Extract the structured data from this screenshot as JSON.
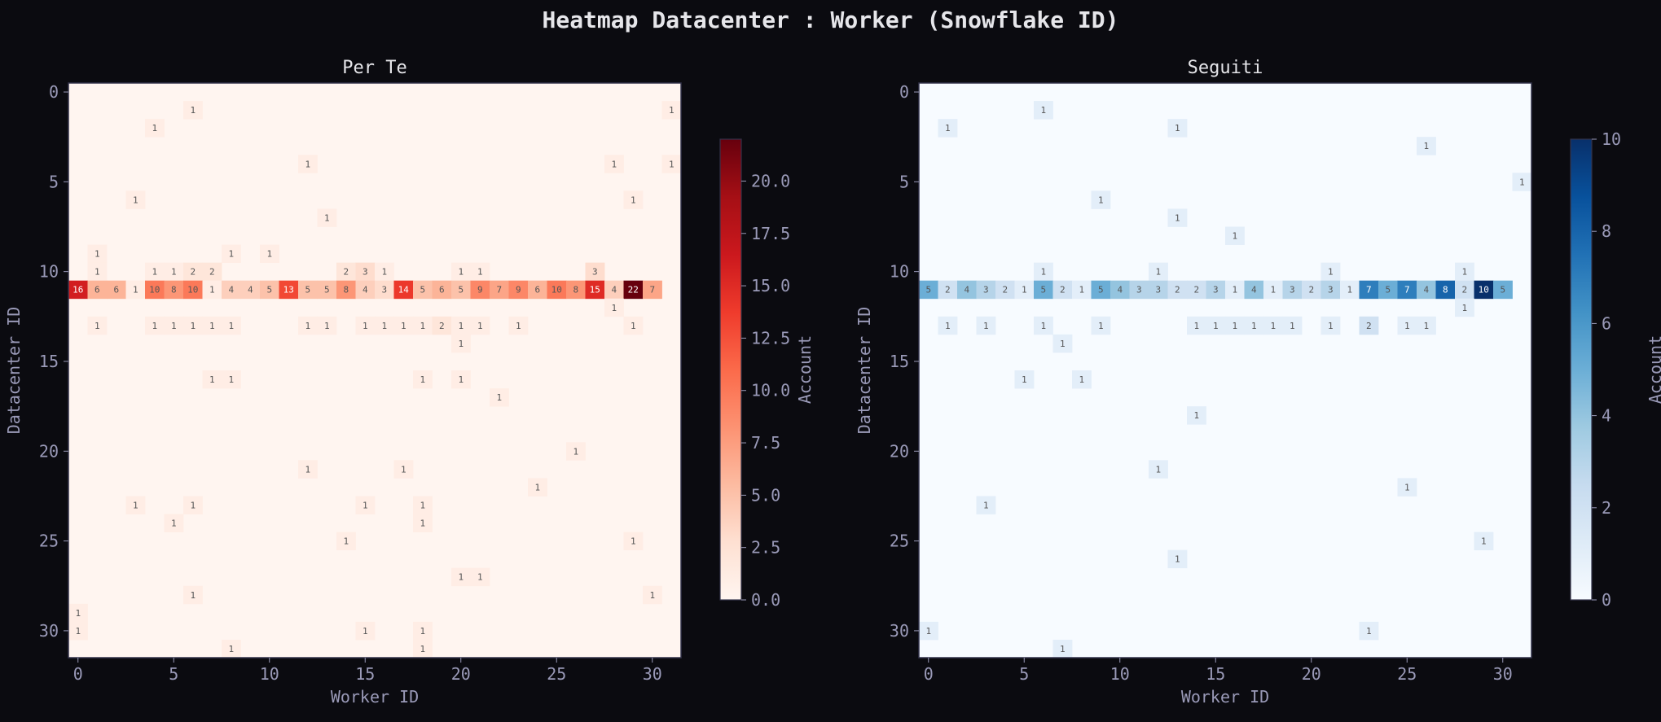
{
  "suptitle": "Heatmap Datacenter : Worker (Snowflake ID)",
  "chart_data": [
    {
      "type": "heatmap",
      "title": "Per Te",
      "xlabel": "Worker ID",
      "ylabel": "Datacenter ID",
      "colorbar_label": "Account",
      "colormap": "Reds",
      "colorbar_ticks": [
        "0.0",
        "2.5",
        "5.0",
        "7.5",
        "10.0",
        "12.5",
        "15.0",
        "17.5",
        "20.0"
      ],
      "x_ticks": [
        "0",
        "5",
        "10",
        "15",
        "20",
        "25",
        "30"
      ],
      "y_ticks": [
        "0",
        "5",
        "10",
        "15",
        "20",
        "25",
        "30"
      ],
      "xlim": [
        0,
        31
      ],
      "ylim": [
        31,
        0
      ],
      "vmin": 0,
      "vmax": 22,
      "cells": [
        [
          6,
          1,
          1
        ],
        [
          31,
          1,
          1
        ],
        [
          4,
          2,
          1
        ],
        [
          12,
          4,
          1
        ],
        [
          28,
          4,
          1
        ],
        [
          31,
          4,
          1
        ],
        [
          3,
          6,
          1
        ],
        [
          29,
          6,
          1
        ],
        [
          13,
          7,
          1
        ],
        [
          1,
          9,
          1
        ],
        [
          8,
          9,
          1
        ],
        [
          10,
          9,
          1
        ],
        [
          1,
          10,
          1
        ],
        [
          4,
          10,
          1
        ],
        [
          5,
          10,
          1
        ],
        [
          6,
          10,
          2
        ],
        [
          7,
          10,
          2
        ],
        [
          14,
          10,
          2
        ],
        [
          15,
          10,
          3
        ],
        [
          16,
          10,
          1
        ],
        [
          20,
          10,
          1
        ],
        [
          21,
          10,
          1
        ],
        [
          27,
          10,
          3
        ],
        [
          0,
          11,
          16
        ],
        [
          1,
          11,
          6
        ],
        [
          2,
          11,
          6
        ],
        [
          3,
          11,
          1
        ],
        [
          4,
          11,
          10
        ],
        [
          5,
          11,
          8
        ],
        [
          6,
          11,
          10
        ],
        [
          7,
          11,
          1
        ],
        [
          8,
          11,
          4
        ],
        [
          9,
          11,
          4
        ],
        [
          10,
          11,
          5
        ],
        [
          11,
          11,
          13
        ],
        [
          12,
          11,
          5
        ],
        [
          13,
          11,
          5
        ],
        [
          14,
          11,
          8
        ],
        [
          15,
          11,
          4
        ],
        [
          16,
          11,
          3
        ],
        [
          17,
          11,
          14
        ],
        [
          18,
          11,
          5
        ],
        [
          19,
          11,
          6
        ],
        [
          20,
          11,
          5
        ],
        [
          21,
          11,
          9
        ],
        [
          22,
          11,
          7
        ],
        [
          23,
          11,
          9
        ],
        [
          24,
          11,
          6
        ],
        [
          25,
          11,
          10
        ],
        [
          26,
          11,
          8
        ],
        [
          27,
          11,
          15
        ],
        [
          28,
          11,
          4
        ],
        [
          29,
          11,
          22
        ],
        [
          30,
          11,
          7
        ],
        [
          28,
          12,
          1
        ],
        [
          1,
          13,
          1
        ],
        [
          4,
          13,
          1
        ],
        [
          5,
          13,
          1
        ],
        [
          6,
          13,
          1
        ],
        [
          7,
          13,
          1
        ],
        [
          8,
          13,
          1
        ],
        [
          12,
          13,
          1
        ],
        [
          13,
          13,
          1
        ],
        [
          15,
          13,
          1
        ],
        [
          16,
          13,
          1
        ],
        [
          17,
          13,
          1
        ],
        [
          18,
          13,
          1
        ],
        [
          19,
          13,
          2
        ],
        [
          20,
          13,
          1
        ],
        [
          21,
          13,
          1
        ],
        [
          23,
          13,
          1
        ],
        [
          29,
          13,
          1
        ],
        [
          20,
          14,
          1
        ],
        [
          7,
          16,
          1
        ],
        [
          8,
          16,
          1
        ],
        [
          18,
          16,
          1
        ],
        [
          20,
          16,
          1
        ],
        [
          22,
          17,
          1
        ],
        [
          26,
          20,
          1
        ],
        [
          12,
          21,
          1
        ],
        [
          17,
          21,
          1
        ],
        [
          24,
          22,
          1
        ],
        [
          3,
          23,
          1
        ],
        [
          6,
          23,
          1
        ],
        [
          15,
          23,
          1
        ],
        [
          18,
          23,
          1
        ],
        [
          5,
          24,
          1
        ],
        [
          18,
          24,
          1
        ],
        [
          14,
          25,
          1
        ],
        [
          29,
          25,
          1
        ],
        [
          20,
          27,
          1
        ],
        [
          21,
          27,
          1
        ],
        [
          6,
          28,
          1
        ],
        [
          30,
          28,
          1
        ],
        [
          0,
          29,
          1
        ],
        [
          0,
          30,
          1
        ],
        [
          15,
          30,
          1
        ],
        [
          18,
          30,
          1
        ],
        [
          8,
          31,
          1
        ],
        [
          18,
          31,
          1
        ]
      ]
    },
    {
      "type": "heatmap",
      "title": "Seguiti",
      "xlabel": "Worker ID",
      "ylabel": "Datacenter ID",
      "colorbar_label": "Account",
      "colormap": "Blues",
      "colorbar_ticks": [
        "0",
        "2",
        "4",
        "6",
        "8",
        "10"
      ],
      "x_ticks": [
        "0",
        "5",
        "10",
        "15",
        "20",
        "25",
        "30"
      ],
      "y_ticks": [
        "0",
        "5",
        "10",
        "15",
        "20",
        "25",
        "30"
      ],
      "xlim": [
        0,
        31
      ],
      "ylim": [
        31,
        0
      ],
      "vmin": 0,
      "vmax": 10,
      "cells": [
        [
          6,
          1,
          1
        ],
        [
          1,
          2,
          1
        ],
        [
          13,
          2,
          1
        ],
        [
          26,
          3,
          1
        ],
        [
          31,
          5,
          1
        ],
        [
          9,
          6,
          1
        ],
        [
          13,
          7,
          1
        ],
        [
          16,
          8,
          1
        ],
        [
          6,
          10,
          1
        ],
        [
          12,
          10,
          1
        ],
        [
          21,
          10,
          1
        ],
        [
          28,
          10,
          1
        ],
        [
          0,
          11,
          5
        ],
        [
          1,
          11,
          2
        ],
        [
          2,
          11,
          4
        ],
        [
          3,
          11,
          3
        ],
        [
          4,
          11,
          2
        ],
        [
          5,
          11,
          1
        ],
        [
          6,
          11,
          5
        ],
        [
          7,
          11,
          2
        ],
        [
          8,
          11,
          1
        ],
        [
          9,
          11,
          5
        ],
        [
          10,
          11,
          4
        ],
        [
          11,
          11,
          3
        ],
        [
          12,
          11,
          3
        ],
        [
          13,
          11,
          2
        ],
        [
          14,
          11,
          2
        ],
        [
          15,
          11,
          3
        ],
        [
          16,
          11,
          1
        ],
        [
          17,
          11,
          4
        ],
        [
          18,
          11,
          1
        ],
        [
          19,
          11,
          3
        ],
        [
          20,
          11,
          2
        ],
        [
          21,
          11,
          3
        ],
        [
          22,
          11,
          1
        ],
        [
          23,
          11,
          7
        ],
        [
          24,
          11,
          5
        ],
        [
          25,
          11,
          7
        ],
        [
          26,
          11,
          4
        ],
        [
          27,
          11,
          8
        ],
        [
          28,
          11,
          2
        ],
        [
          29,
          11,
          10
        ],
        [
          30,
          11,
          5
        ],
        [
          28,
          12,
          1
        ],
        [
          1,
          13,
          1
        ],
        [
          3,
          13,
          1
        ],
        [
          6,
          13,
          1
        ],
        [
          9,
          13,
          1
        ],
        [
          14,
          13,
          1
        ],
        [
          15,
          13,
          1
        ],
        [
          16,
          13,
          1
        ],
        [
          17,
          13,
          1
        ],
        [
          18,
          13,
          1
        ],
        [
          19,
          13,
          1
        ],
        [
          21,
          13,
          1
        ],
        [
          23,
          13,
          2
        ],
        [
          25,
          13,
          1
        ],
        [
          26,
          13,
          1
        ],
        [
          7,
          14,
          1
        ],
        [
          5,
          16,
          1
        ],
        [
          8,
          16,
          1
        ],
        [
          14,
          18,
          1
        ],
        [
          12,
          21,
          1
        ],
        [
          25,
          22,
          1
        ],
        [
          3,
          23,
          1
        ],
        [
          29,
          25,
          1
        ],
        [
          13,
          26,
          1
        ],
        [
          0,
          30,
          1
        ],
        [
          23,
          30,
          1
        ],
        [
          7,
          31,
          1
        ]
      ]
    }
  ]
}
